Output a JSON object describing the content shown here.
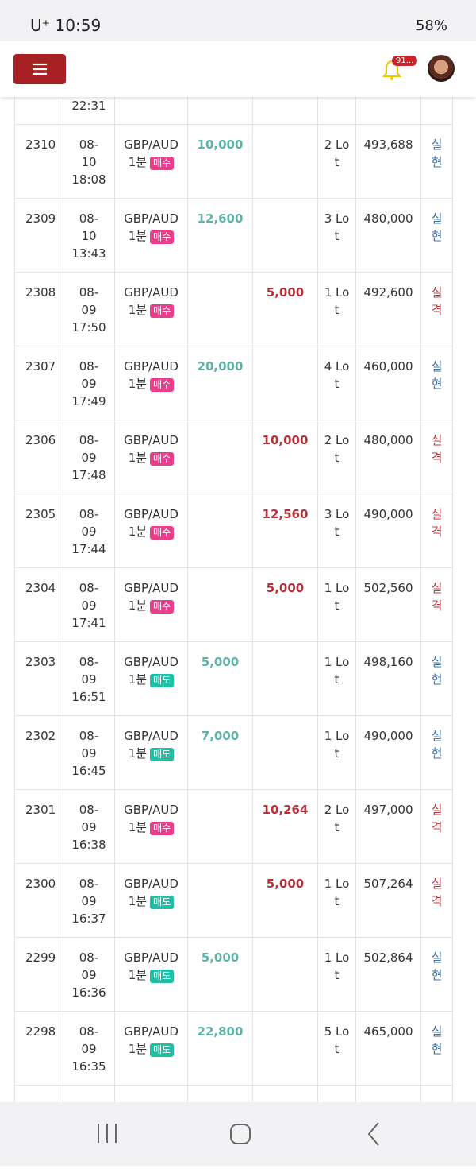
{
  "status_bar": {
    "carrier_time": "U⁺ 10:59",
    "battery": "58%"
  },
  "header": {
    "notification_count": "91..."
  },
  "table": {
    "partial_top_time": "22:31",
    "rows": [
      {
        "id": "2310",
        "date": "08-10",
        "time": "18:08",
        "pair": "GBP/AUD",
        "period": "1분",
        "side": "매수",
        "profit": "10,000",
        "loss": null,
        "lots": "2 Lot",
        "balance": "493,688",
        "status": "실현"
      },
      {
        "id": "2309",
        "date": "08-10",
        "time": "13:43",
        "pair": "GBP/AUD",
        "period": "1분",
        "side": "매수",
        "profit": "12,600",
        "loss": null,
        "lots": "3 Lot",
        "balance": "480,000",
        "status": "실현"
      },
      {
        "id": "2308",
        "date": "08-09",
        "time": "17:50",
        "pair": "GBP/AUD",
        "period": "1분",
        "side": "매수",
        "profit": null,
        "loss": "5,000",
        "lots": "1 Lot",
        "balance": "492,600",
        "status": "실격"
      },
      {
        "id": "2307",
        "date": "08-09",
        "time": "17:49",
        "pair": "GBP/AUD",
        "period": "1분",
        "side": "매수",
        "profit": "20,000",
        "loss": null,
        "lots": "4 Lot",
        "balance": "460,000",
        "status": "실현"
      },
      {
        "id": "2306",
        "date": "08-09",
        "time": "17:48",
        "pair": "GBP/AUD",
        "period": "1분",
        "side": "매수",
        "profit": null,
        "loss": "10,000",
        "lots": "2 Lot",
        "balance": "480,000",
        "status": "실격"
      },
      {
        "id": "2305",
        "date": "08-09",
        "time": "17:44",
        "pair": "GBP/AUD",
        "period": "1분",
        "side": "매수",
        "profit": null,
        "loss": "12,560",
        "lots": "3 Lot",
        "balance": "490,000",
        "status": "실격"
      },
      {
        "id": "2304",
        "date": "08-09",
        "time": "17:41",
        "pair": "GBP/AUD",
        "period": "1분",
        "side": "매수",
        "profit": null,
        "loss": "5,000",
        "lots": "1 Lot",
        "balance": "502,560",
        "status": "실격"
      },
      {
        "id": "2303",
        "date": "08-09",
        "time": "16:51",
        "pair": "GBP/AUD",
        "period": "1분",
        "side": "매도",
        "profit": "5,000",
        "loss": null,
        "lots": "1 Lot",
        "balance": "498,160",
        "status": "실현"
      },
      {
        "id": "2302",
        "date": "08-09",
        "time": "16:45",
        "pair": "GBP/AUD",
        "period": "1분",
        "side": "매도",
        "profit": "7,000",
        "loss": null,
        "lots": "1 Lot",
        "balance": "490,000",
        "status": "실현"
      },
      {
        "id": "2301",
        "date": "08-09",
        "time": "16:38",
        "pair": "GBP/AUD",
        "period": "1분",
        "side": "매수",
        "profit": null,
        "loss": "10,264",
        "lots": "2 Lot",
        "balance": "497,000",
        "status": "실격"
      },
      {
        "id": "2300",
        "date": "08-09",
        "time": "16:37",
        "pair": "GBP/AUD",
        "period": "1분",
        "side": "매도",
        "profit": null,
        "loss": "5,000",
        "lots": "1 Lot",
        "balance": "507,264",
        "status": "실격"
      },
      {
        "id": "2299",
        "date": "08-09",
        "time": "16:36",
        "pair": "GBP/AUD",
        "period": "1분",
        "side": "매도",
        "profit": "5,000",
        "loss": null,
        "lots": "1 Lot",
        "balance": "502,864",
        "status": "실현"
      },
      {
        "id": "2298",
        "date": "08-09",
        "time": "16:35",
        "pair": "GBP/AUD",
        "period": "1분",
        "side": "매도",
        "profit": "22,800",
        "loss": null,
        "lots": "5 Lot",
        "balance": "465,000",
        "status": "실현"
      }
    ]
  }
}
